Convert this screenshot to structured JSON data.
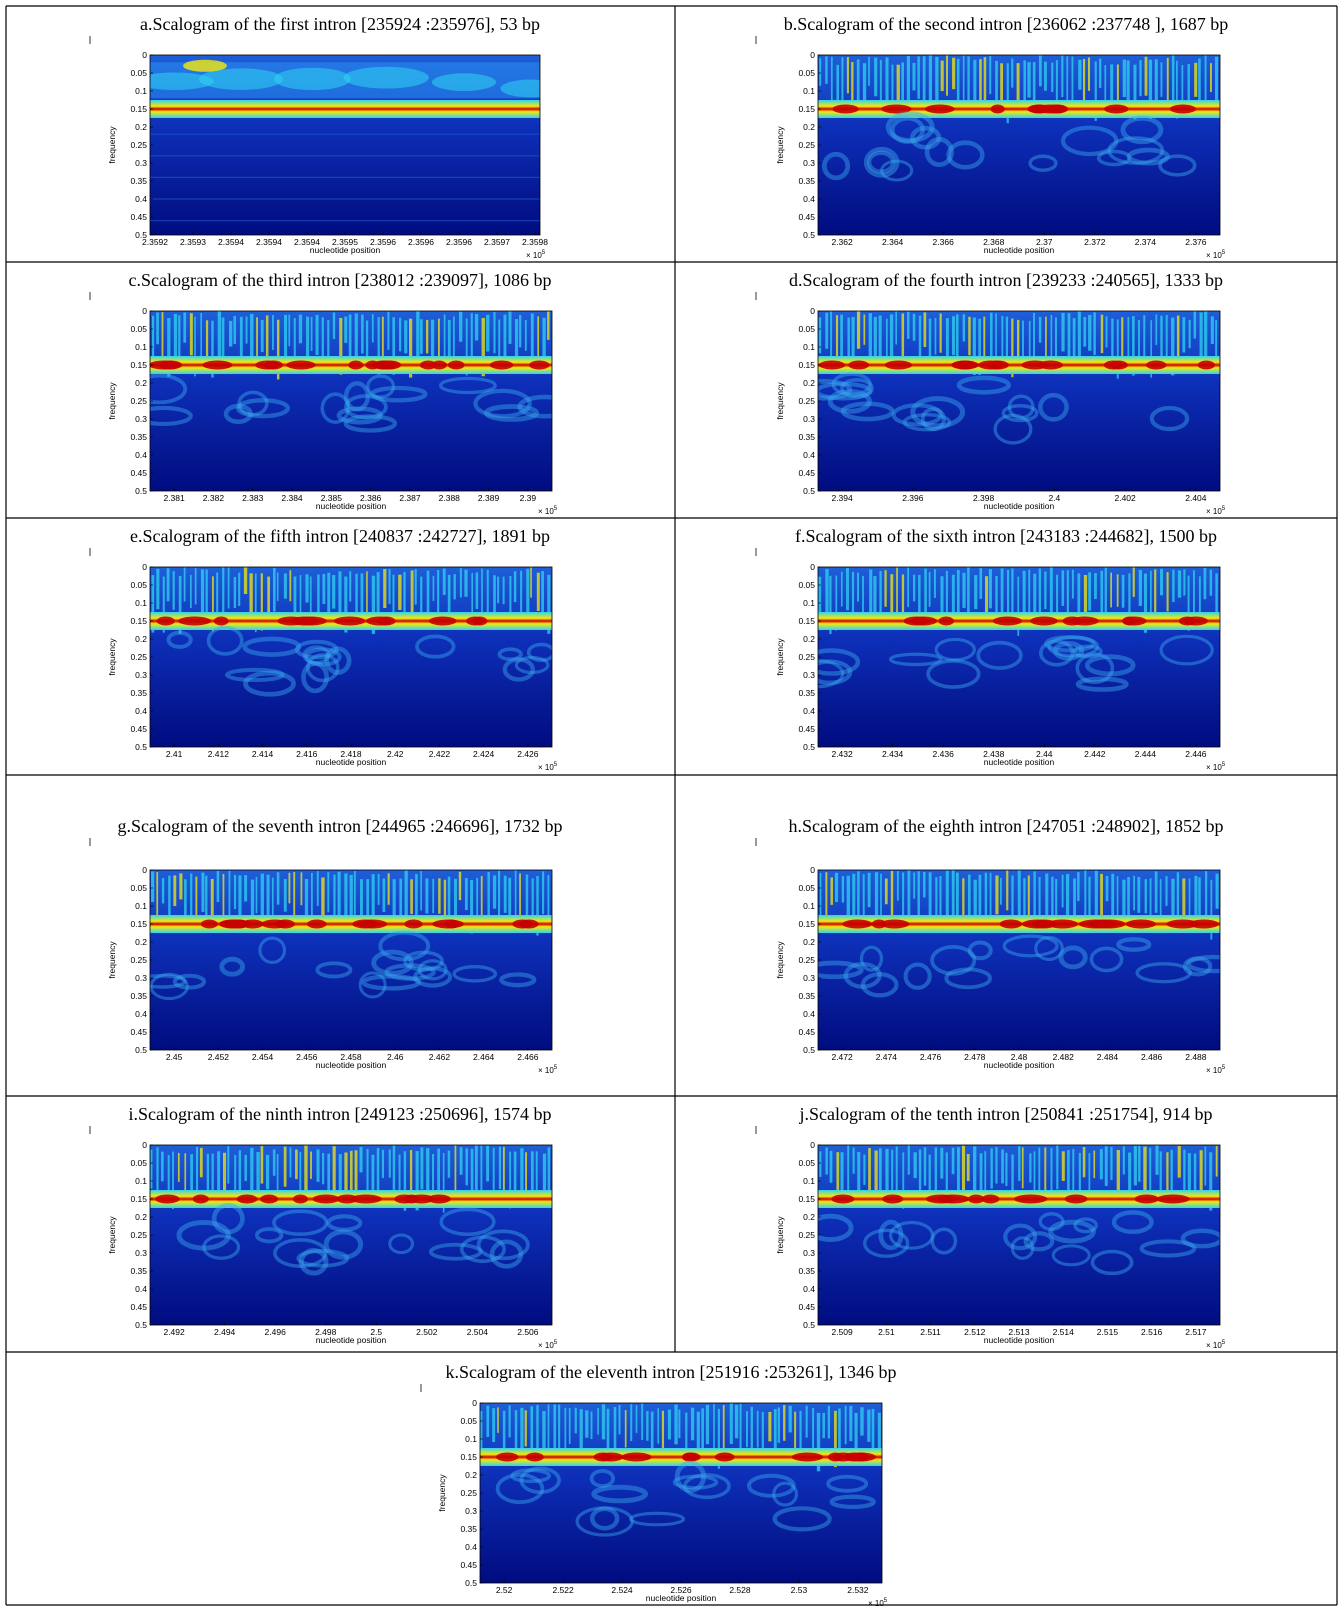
{
  "chart_data": [
    {
      "type": "heatmap",
      "title": "a.Scalogram of the first intron [235924 :235976], 53 bp",
      "xlabel": "nucleotide position",
      "ylabel": "frequency",
      "x_ticks": [
        "2.3592",
        "2.3593",
        "2.3594",
        "2.3594",
        "2.3594",
        "2.3595",
        "2.3596",
        "2.3596",
        "2.3596",
        "2.3597",
        "2.3598"
      ],
      "x_exponent": "5",
      "y_ticks": [
        "0",
        "0.05",
        "0.1",
        "0.15",
        "0.2",
        "0.25",
        "0.3",
        "0.35",
        "0.4",
        "0.45",
        "0.5"
      ],
      "ylim": [
        0,
        0.5
      ],
      "dominant_band_frequency": 0.15
    },
    {
      "type": "heatmap",
      "title": "b.Scalogram of the second intron [236062 :237748 ], 1687 bp",
      "xlabel": "nucleotide position",
      "ylabel": "frequency",
      "x_ticks": [
        "2.362",
        "2.364",
        "2.366",
        "2.368",
        "2.37",
        "2.372",
        "2.374",
        "2.376"
      ],
      "x_exponent": "5",
      "y_ticks": [
        "0",
        "0.05",
        "0.1",
        "0.15",
        "0.2",
        "0.25",
        "0.3",
        "0.35",
        "0.4",
        "0.45",
        "0.5"
      ],
      "ylim": [
        0,
        0.5
      ],
      "dominant_band_frequency": 0.15
    },
    {
      "type": "heatmap",
      "title": "c.Scalogram of the third intron [238012 :239097], 1086 bp",
      "xlabel": "nucleotide position",
      "ylabel": "frequency",
      "x_ticks": [
        "2.381",
        "2.382",
        "2.383",
        "2.384",
        "2.385",
        "2.386",
        "2.387",
        "2.388",
        "2.389",
        "2.39"
      ],
      "x_exponent": "5",
      "y_ticks": [
        "0",
        "0.05",
        "0.1",
        "0.15",
        "0.2",
        "0.25",
        "0.3",
        "0.35",
        "0.4",
        "0.45",
        "0.5"
      ],
      "ylim": [
        0,
        0.5
      ],
      "dominant_band_frequency": 0.15
    },
    {
      "type": "heatmap",
      "title": "d.Scalogram of the fourth intron [239233 :240565], 1333 bp",
      "xlabel": "nucleotide position",
      "ylabel": "frequency",
      "x_ticks": [
        "2.394",
        "2.396",
        "2.398",
        "2.4",
        "2.402",
        "2.404"
      ],
      "x_exponent": "5",
      "y_ticks": [
        "0",
        "0.05",
        "0.1",
        "0.15",
        "0.2",
        "0.25",
        "0.3",
        "0.35",
        "0.4",
        "0.45",
        "0.5"
      ],
      "ylim": [
        0,
        0.5
      ],
      "dominant_band_frequency": 0.15
    },
    {
      "type": "heatmap",
      "title": "e.Scalogram of the fifth intron [240837 :242727], 1891 bp",
      "xlabel": "nucleotide position",
      "ylabel": "frequency",
      "x_ticks": [
        "2.41",
        "2.412",
        "2.414",
        "2.416",
        "2.418",
        "2.42",
        "2.422",
        "2.424",
        "2.426"
      ],
      "x_exponent": "5",
      "y_ticks": [
        "0",
        "0.05",
        "0.1",
        "0.15",
        "0.2",
        "0.25",
        "0.3",
        "0.35",
        "0.4",
        "0.45",
        "0.5"
      ],
      "ylim": [
        0,
        0.5
      ],
      "dominant_band_frequency": 0.15
    },
    {
      "type": "heatmap",
      "title": "f.Scalogram of the sixth intron [243183 :244682], 1500 bp",
      "xlabel": "nucleotide position",
      "ylabel": "frequency",
      "x_ticks": [
        "2.432",
        "2.434",
        "2.436",
        "2.438",
        "2.44",
        "2.442",
        "2.444",
        "2.446"
      ],
      "x_exponent": "5",
      "y_ticks": [
        "0",
        "0.05",
        "0.1",
        "0.15",
        "0.2",
        "0.25",
        "0.3",
        "0.35",
        "0.4",
        "0.45",
        "0.5"
      ],
      "ylim": [
        0,
        0.5
      ],
      "dominant_band_frequency": 0.15
    },
    {
      "type": "heatmap",
      "title": "g.Scalogram of the seventh intron [244965 :246696], 1732 bp",
      "xlabel": "nucleotide position",
      "ylabel": "frequency",
      "x_ticks": [
        "2.45",
        "2.452",
        "2.454",
        "2.456",
        "2.458",
        "2.46",
        "2.462",
        "2.464",
        "2.466"
      ],
      "x_exponent": "5",
      "y_ticks": [
        "0",
        "0.05",
        "0.1",
        "0.15",
        "0.2",
        "0.25",
        "0.3",
        "0.35",
        "0.4",
        "0.45",
        "0.5"
      ],
      "ylim": [
        0,
        0.5
      ],
      "dominant_band_frequency": 0.15
    },
    {
      "type": "heatmap",
      "title": "h.Scalogram of the eighth intron [247051 :248902], 1852 bp",
      "xlabel": "nucleotide position",
      "ylabel": "frequency",
      "x_ticks": [
        "2.472",
        "2.474",
        "2.476",
        "2.478",
        "2.48",
        "2.482",
        "2.484",
        "2.486",
        "2.488"
      ],
      "x_exponent": "5",
      "y_ticks": [
        "0",
        "0.05",
        "0.1",
        "0.15",
        "0.2",
        "0.25",
        "0.3",
        "0.35",
        "0.4",
        "0.45",
        "0.5"
      ],
      "ylim": [
        0,
        0.5
      ],
      "dominant_band_frequency": 0.15
    },
    {
      "type": "heatmap",
      "title": "i.Scalogram of the ninth intron [249123 :250696], 1574 bp",
      "xlabel": "nucleotide position",
      "ylabel": "frequency",
      "x_ticks": [
        "2.492",
        "2.494",
        "2.496",
        "2.498",
        "2.5",
        "2.502",
        "2.504",
        "2.506"
      ],
      "x_exponent": "5",
      "y_ticks": [
        "0",
        "0.05",
        "0.1",
        "0.15",
        "0.2",
        "0.25",
        "0.3",
        "0.35",
        "0.4",
        "0.45",
        "0.5"
      ],
      "ylim": [
        0,
        0.5
      ],
      "dominant_band_frequency": 0.15
    },
    {
      "type": "heatmap",
      "title": "j.Scalogram of the tenth intron [250841 :251754], 914 bp",
      "xlabel": "nucleotide position",
      "ylabel": "frequency",
      "x_ticks": [
        "2.509",
        "2.51",
        "2.511",
        "2.512",
        "2.513",
        "2.514",
        "2.515",
        "2.516",
        "2.517"
      ],
      "x_exponent": "5",
      "y_ticks": [
        "0",
        "0.05",
        "0.1",
        "0.15",
        "0.2",
        "0.25",
        "0.3",
        "0.35",
        "0.4",
        "0.45",
        "0.5"
      ],
      "ylim": [
        0,
        0.5
      ],
      "dominant_band_frequency": 0.15
    },
    {
      "type": "heatmap",
      "title": "k.Scalogram of the eleventh intron [251916 :253261], 1346 bp",
      "xlabel": "nucleotide position",
      "ylabel": "frequency",
      "x_ticks": [
        "2.52",
        "2.522",
        "2.524",
        "2.526",
        "2.528",
        "2.53",
        "2.532"
      ],
      "x_exponent": "5",
      "y_ticks": [
        "0",
        "0.05",
        "0.1",
        "0.15",
        "0.2",
        "0.25",
        "0.3",
        "0.35",
        "0.4",
        "0.45",
        "0.5"
      ],
      "ylim": [
        0,
        0.5
      ],
      "dominant_band_frequency": 0.15
    }
  ],
  "colors": {
    "background_blue": "#0a1f9e",
    "deep_blue": "#000f8a",
    "cyan": "#2fd3f2",
    "yellow": "#f5e90a",
    "red": "#c80000"
  },
  "x_exponent_prefix": "× 10"
}
